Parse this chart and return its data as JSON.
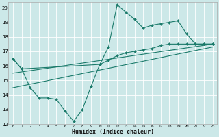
{
  "xlabel": "Humidex (Indice chaleur)",
  "bg_color": "#cce8e8",
  "grid_color": "#ffffff",
  "line_color": "#1a7a6a",
  "xlim": [
    -0.5,
    23.5
  ],
  "ylim": [
    12,
    20.4
  ],
  "xticks": [
    0,
    1,
    2,
    3,
    4,
    5,
    6,
    7,
    8,
    9,
    10,
    11,
    12,
    13,
    14,
    15,
    16,
    17,
    18,
    19,
    20,
    21,
    22,
    23
  ],
  "yticks": [
    12,
    13,
    14,
    15,
    16,
    17,
    18,
    19,
    20
  ],
  "series1_x": [
    0,
    1,
    2,
    3,
    4,
    5,
    6,
    7,
    8,
    9,
    10,
    11,
    12,
    13,
    14,
    15,
    16,
    17,
    18,
    19,
    20,
    21,
    22,
    23
  ],
  "series1_y": [
    16.5,
    15.8,
    14.5,
    13.8,
    13.8,
    13.7,
    12.9,
    12.2,
    13.0,
    14.6,
    16.1,
    17.3,
    20.2,
    19.7,
    19.2,
    18.6,
    18.8,
    18.9,
    19.0,
    19.1,
    18.2,
    17.5,
    17.5,
    17.5
  ],
  "series2_x": [
    0,
    1,
    10,
    11,
    12,
    13,
    14,
    15,
    16,
    17,
    18,
    19,
    20,
    21,
    22,
    23
  ],
  "series2_y": [
    16.5,
    15.8,
    16.1,
    16.4,
    16.7,
    16.9,
    17.0,
    17.1,
    17.2,
    17.4,
    17.5,
    17.5,
    17.5,
    17.5,
    17.5,
    17.5
  ],
  "trend1_x": [
    0,
    23
  ],
  "trend1_y": [
    15.5,
    17.5
  ],
  "trend2_x": [
    0,
    23
  ],
  "trend2_y": [
    14.5,
    17.3
  ]
}
